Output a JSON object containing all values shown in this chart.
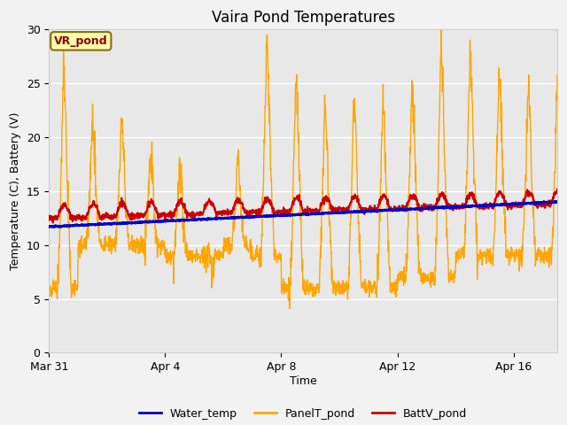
{
  "title": "Vaira Pond Temperatures",
  "xlabel": "Time",
  "ylabel": "Temperature (C), Battery (V)",
  "ylim": [
    0,
    30
  ],
  "yticks": [
    0,
    5,
    10,
    15,
    20,
    25,
    30
  ],
  "bg_color": "#e8e8e8",
  "fig_color": "#f2f2f2",
  "annotation_text": "VR_pond",
  "annotation_facecolor": "#ffffaa",
  "annotation_edgecolor": "#8b6914",
  "water_temp_color": "#0000cc",
  "panel_temp_color": "#ffa500",
  "batt_color": "#cc0000",
  "water_temp_start": 11.7,
  "water_temp_end": 14.0,
  "legend_labels": [
    "Water_temp",
    "PanelT_pond",
    "BattV_pond"
  ],
  "x_tick_labels": [
    "Mar 31",
    "Apr 4",
    "Apr 8",
    "Apr 12",
    "Apr 16"
  ],
  "x_tick_positions": [
    0,
    4,
    8,
    12,
    16
  ],
  "num_days": 17.5,
  "xlim_end": 17.5
}
